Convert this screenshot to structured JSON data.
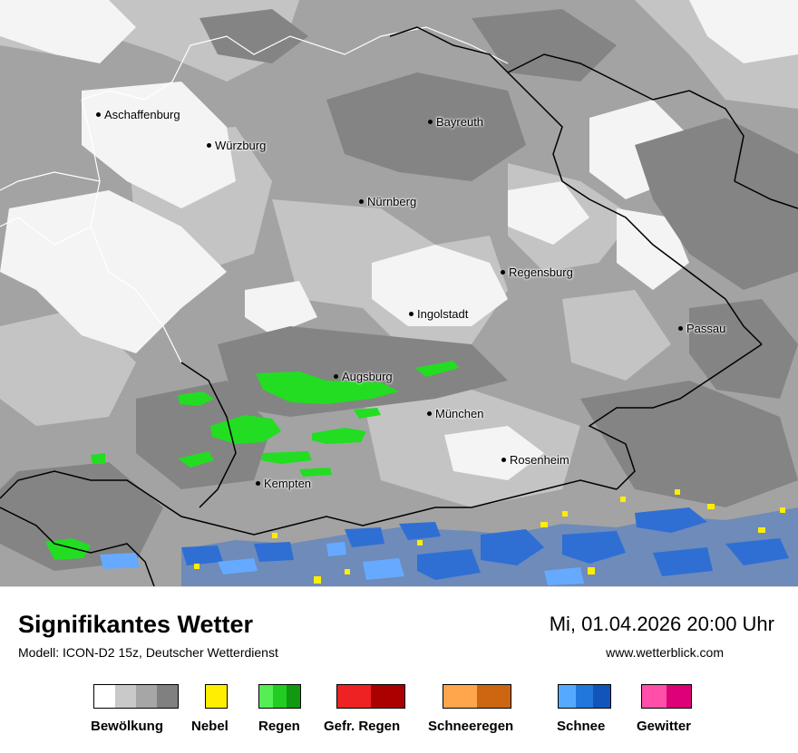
{
  "title": "Signifikantes Wetter",
  "subtitle": "Modell: ICON-D2 15z, Deutscher Wetterdienst",
  "datetime": "Mi, 01.04.2026 20:00 Uhr",
  "website": "www.wetterblick.com",
  "cities": [
    {
      "name": "Aschaffenburg"
    },
    {
      "name": "Bayreuth"
    },
    {
      "name": "Würzburg"
    },
    {
      "name": "Nürnberg"
    },
    {
      "name": "Regensburg"
    },
    {
      "name": "Ingolstadt"
    },
    {
      "name": "Passau"
    },
    {
      "name": "Augsburg"
    },
    {
      "name": "München"
    },
    {
      "name": "Rosenheim"
    },
    {
      "name": "Kempten"
    }
  ],
  "legend": [
    {
      "label": "Bewölkung",
      "colors": [
        "#ffffff",
        "#c9c9c9",
        "#a6a6a6",
        "#808080"
      ]
    },
    {
      "label": "Nebel",
      "colors": [
        "#ffee00"
      ]
    },
    {
      "label": "Regen",
      "colors": [
        "#55ee55",
        "#22cc22",
        "#119911"
      ]
    },
    {
      "label": "Gefr. Regen",
      "colors": [
        "#ee2222",
        "#aa0000"
      ]
    },
    {
      "label": "Schneeregen",
      "colors": [
        "#ffa64d",
        "#cc6611"
      ]
    },
    {
      "label": "Schnee",
      "colors": [
        "#55aaff",
        "#2277dd",
        "#1155bb"
      ]
    },
    {
      "label": "Gewitter",
      "colors": [
        "#ff4fa8",
        "#dd0077"
      ]
    }
  ]
}
